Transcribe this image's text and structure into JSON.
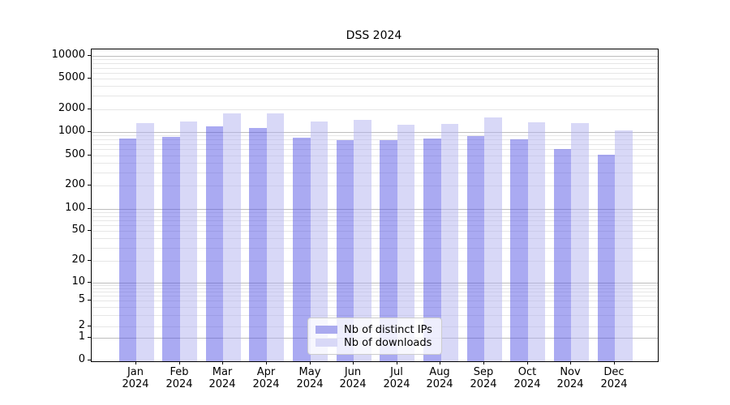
{
  "chart_data": {
    "type": "bar",
    "title": "DSS 2024",
    "categories": [
      "Jan 2024",
      "Feb 2024",
      "Mar 2024",
      "Apr 2024",
      "May 2024",
      "Jun 2024",
      "Jul 2024",
      "Aug 2024",
      "Sep 2024",
      "Oct 2024",
      "Nov 2024",
      "Dec 2024"
    ],
    "series": [
      {
        "name": "Nb of distinct IPs",
        "color": "#aaaaef",
        "fill": "rgba(85,85,230,0.5)",
        "values": [
          820,
          870,
          1190,
          1130,
          840,
          780,
          780,
          820,
          890,
          800,
          600,
          510
        ]
      },
      {
        "name": "Nb of downloads",
        "color": "#d8d8f7",
        "fill": "rgba(177,177,240,0.5)",
        "values": [
          1310,
          1380,
          1760,
          1760,
          1380,
          1460,
          1260,
          1290,
          1570,
          1340,
          1310,
          1060
        ]
      }
    ],
    "yticks": [
      0,
      1,
      2,
      5,
      10,
      20,
      50,
      100,
      200,
      500,
      1000,
      2000,
      5000,
      10000
    ],
    "yscale": "symlog",
    "ylim": [
      0,
      13000
    ],
    "grid": true,
    "legend_position": "lower center"
  }
}
